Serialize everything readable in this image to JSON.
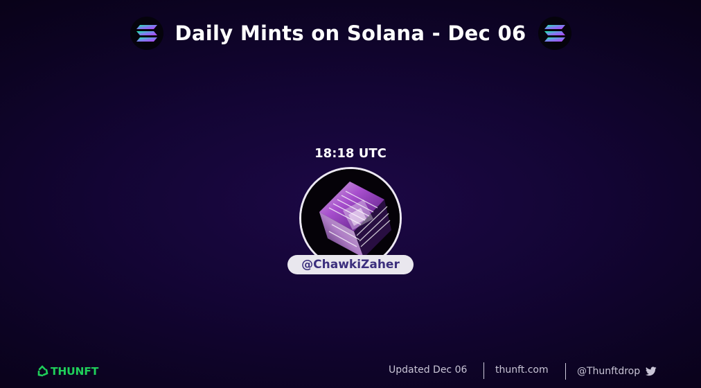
{
  "header": {
    "title": "Daily Mints on Solana - Dec 06",
    "left_logo_icon": "solana-logo-icon",
    "right_logo_icon": "solana-logo-icon"
  },
  "mint": {
    "time": "18:18 UTC",
    "avatar_icon": "holographic-cube-artwork",
    "handle": "@ChawkiZaher"
  },
  "footer": {
    "brand": "THUNFT",
    "brand_icon": "thunft-recycle-logo-icon",
    "updated": "Updated Dec 06",
    "site": "thunft.com",
    "twitter_handle": "@Thunftdrop",
    "twitter_icon": "twitter-bird-icon"
  },
  "colors": {
    "background": "#130534",
    "brand_green": "#1fcf5a",
    "handle_text": "#3b2f7d",
    "pill_bg": "#e9e7ee"
  }
}
